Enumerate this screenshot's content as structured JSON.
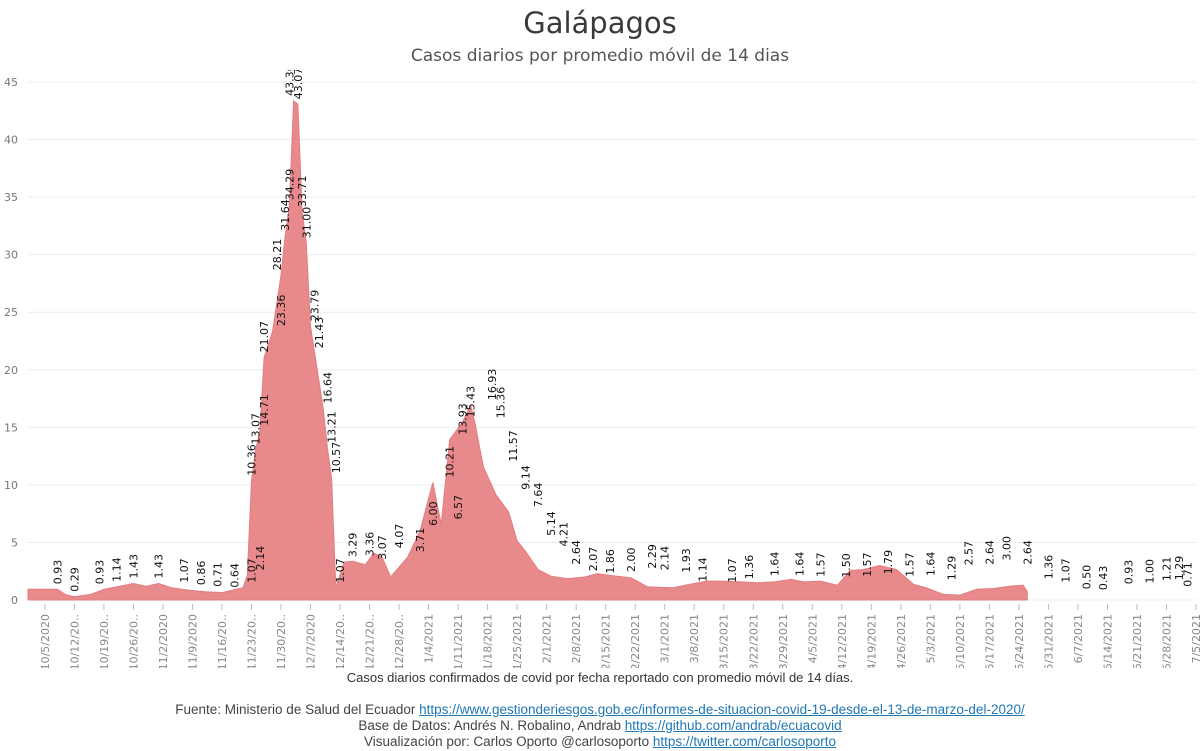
{
  "chart_data": {
    "type": "area",
    "title": "Galápagos",
    "subtitle": "Casos diarios por promedio móvil de 14 dias",
    "xlabel": "Casos diarios confirmados de covid por fecha reportado con promedio móvil de 14 días.",
    "ylim": [
      0,
      45
    ],
    "y_ticks": [
      0,
      5,
      10,
      15,
      20,
      25,
      30,
      35,
      40,
      45
    ],
    "x_ticks": [
      "10/5/2020",
      "10/12/20..",
      "10/19/20..",
      "10/26/20..",
      "11/2/2020",
      "11/9/2020",
      "11/16/20..",
      "11/23/20..",
      "11/30/20..",
      "12/7/2020",
      "12/14/20..",
      "12/21/20..",
      "12/28/20..",
      "1/4/2021",
      "1/11/2021",
      "1/18/2021",
      "1/25/2021",
      "2/1/2021",
      "2/8/2021",
      "2/15/2021",
      "2/22/2021",
      "3/1/2021",
      "3/8/2021",
      "3/15/2021",
      "3/22/2021",
      "3/29/2021",
      "4/5/2021",
      "4/12/2021",
      "4/19/2021",
      "4/26/2021",
      "5/3/2021",
      "5/10/2021",
      "5/17/2021",
      "5/24/2021",
      "5/31/2021",
      "6/7/2021",
      "6/14/2021",
      "6/21/2021",
      "6/28/2021",
      "7/5/2021"
    ],
    "x_start": "2020-10-01",
    "x_end": "2021-07-05",
    "grid": "horizontal",
    "color": "#e8898b",
    "series": [
      {
        "points": [
          [
            "2020-10-01",
            0.93
          ],
          [
            "2020-10-08",
            0.93
          ],
          [
            "2020-10-10",
            0.45
          ],
          [
            "2020-10-12",
            0.29
          ],
          [
            "2020-10-16",
            0.5
          ],
          [
            "2020-10-19",
            0.93
          ],
          [
            "2020-10-22",
            1.14
          ],
          [
            "2020-10-26",
            1.43
          ],
          [
            "2020-10-29",
            1.2
          ],
          [
            "2020-11-01",
            1.43
          ],
          [
            "2020-11-04",
            1.07
          ],
          [
            "2020-11-08",
            0.86
          ],
          [
            "2020-11-12",
            0.71
          ],
          [
            "2020-11-16",
            0.64
          ],
          [
            "2020-11-19",
            0.9
          ],
          [
            "2020-11-21",
            1.07
          ],
          [
            "2020-11-22",
            2.14
          ],
          [
            "2020-11-23",
            10.36
          ],
          [
            "2020-11-24",
            13.07
          ],
          [
            "2020-11-25",
            14.71
          ],
          [
            "2020-11-26",
            21.07
          ],
          [
            "2020-11-28",
            23.36
          ],
          [
            "2020-11-30",
            28.21
          ],
          [
            "2020-12-01",
            31.64
          ],
          [
            "2020-12-02",
            34.29
          ],
          [
            "2020-12-03",
            43.36
          ],
          [
            "2020-12-04",
            43.07
          ],
          [
            "2020-12-05",
            33.71
          ],
          [
            "2020-12-06",
            31.0
          ],
          [
            "2020-12-07",
            23.79
          ],
          [
            "2020-12-08",
            21.43
          ],
          [
            "2020-12-10",
            16.64
          ],
          [
            "2020-12-11",
            13.21
          ],
          [
            "2020-12-12",
            10.57
          ],
          [
            "2020-12-13",
            1.07
          ],
          [
            "2020-12-15",
            3.29
          ],
          [
            "2020-12-17",
            3.36
          ],
          [
            "2020-12-20",
            3.07
          ],
          [
            "2020-12-22",
            4.07
          ],
          [
            "2020-12-24",
            3.71
          ],
          [
            "2020-12-26",
            2.0
          ],
          [
            "2020-12-30",
            3.71
          ],
          [
            "2021-01-02",
            6.0
          ],
          [
            "2021-01-05",
            10.21
          ],
          [
            "2021-01-07",
            6.57
          ],
          [
            "2021-01-09",
            13.93
          ],
          [
            "2021-01-12",
            15.43
          ],
          [
            "2021-01-14",
            16.93
          ],
          [
            "2021-01-15",
            15.36
          ],
          [
            "2021-01-17",
            11.57
          ],
          [
            "2021-01-20",
            9.14
          ],
          [
            "2021-01-23",
            7.64
          ],
          [
            "2021-01-25",
            5.14
          ],
          [
            "2021-01-27",
            4.21
          ],
          [
            "2021-01-30",
            2.64
          ],
          [
            "2021-02-02",
            2.07
          ],
          [
            "2021-02-06",
            1.86
          ],
          [
            "2021-02-10",
            2.0
          ],
          [
            "2021-02-13",
            2.29
          ],
          [
            "2021-02-16",
            2.14
          ],
          [
            "2021-02-21",
            1.93
          ],
          [
            "2021-02-25",
            1.14
          ],
          [
            "2021-03-03",
            1.07
          ],
          [
            "2021-03-07",
            1.36
          ],
          [
            "2021-03-11",
            1.64
          ],
          [
            "2021-03-15",
            1.64
          ],
          [
            "2021-03-19",
            1.57
          ],
          [
            "2021-03-23",
            1.5
          ],
          [
            "2021-03-27",
            1.57
          ],
          [
            "2021-03-31",
            1.79
          ],
          [
            "2021-04-03",
            1.57
          ],
          [
            "2021-04-07",
            1.64
          ],
          [
            "2021-04-11",
            1.29
          ],
          [
            "2021-04-14",
            2.57
          ],
          [
            "2021-04-17",
            2.64
          ],
          [
            "2021-04-21",
            3.0
          ],
          [
            "2021-04-25",
            2.64
          ],
          [
            "2021-04-29",
            1.36
          ],
          [
            "2021-05-02",
            1.07
          ],
          [
            "2021-05-06",
            0.5
          ],
          [
            "2021-05-10",
            0.43
          ],
          [
            "2021-05-14",
            0.93
          ],
          [
            "2021-05-18",
            1.0
          ],
          [
            "2021-05-22",
            1.21
          ],
          [
            "2021-05-25",
            1.29
          ],
          [
            "2021-05-26",
            0.71
          ]
        ]
      }
    ],
    "data_labels": [
      [
        "2020-10-08",
        0.93,
        "0.93"
      ],
      [
        "2020-10-12",
        0.29,
        "0.29"
      ],
      [
        "2020-10-18",
        0.93,
        "0.93"
      ],
      [
        "2020-10-22",
        1.14,
        "1.14"
      ],
      [
        "2020-10-26",
        1.43,
        "1.43"
      ],
      [
        "2020-11-01",
        1.43,
        "1.43"
      ],
      [
        "2020-11-07",
        1.07,
        "1.07"
      ],
      [
        "2020-11-11",
        0.86,
        "0.86"
      ],
      [
        "2020-11-15",
        0.71,
        "0.71"
      ],
      [
        "2020-11-19",
        0.64,
        "0.64"
      ],
      [
        "2020-11-23",
        1.07,
        "1.07"
      ],
      [
        "2020-11-25",
        2.14,
        "2.14"
      ],
      [
        "2020-11-23",
        10.36,
        "10.36"
      ],
      [
        "2020-11-24",
        13.07,
        "13.07"
      ],
      [
        "2020-11-26",
        14.71,
        "14.71"
      ],
      [
        "2020-11-26",
        21.07,
        "21.07"
      ],
      [
        "2020-11-30",
        23.36,
        "23.36"
      ],
      [
        "2020-11-29",
        28.21,
        "28.21"
      ],
      [
        "2020-12-01",
        31.64,
        "31.64"
      ],
      [
        "2020-12-02",
        34.29,
        "34.29"
      ],
      [
        "2020-12-02",
        43.36,
        "43.36"
      ],
      [
        "2020-12-04",
        43.07,
        "43.07"
      ],
      [
        "2020-12-05",
        33.71,
        "33.71"
      ],
      [
        "2020-12-06",
        31.0,
        "31.00"
      ],
      [
        "2020-12-08",
        23.79,
        "23.79"
      ],
      [
        "2020-12-09",
        21.43,
        "21.43"
      ],
      [
        "2020-12-11",
        16.64,
        "16.64"
      ],
      [
        "2020-12-12",
        13.21,
        "13.21"
      ],
      [
        "2020-12-13",
        10.57,
        "10.57"
      ],
      [
        "2020-12-14",
        1.07,
        "1.07"
      ],
      [
        "2020-12-17",
        3.29,
        "3.29"
      ],
      [
        "2020-12-21",
        3.36,
        "3.36"
      ],
      [
        "2020-12-24",
        3.07,
        "3.07"
      ],
      [
        "2020-12-28",
        4.07,
        "4.07"
      ],
      [
        "2021-01-02",
        3.71,
        "3.71"
      ],
      [
        "2021-01-05",
        6.0,
        "6.00"
      ],
      [
        "2021-01-09",
        10.21,
        "10.21"
      ],
      [
        "2021-01-11",
        6.57,
        "6.57"
      ],
      [
        "2021-01-12",
        13.93,
        "13.93"
      ],
      [
        "2021-01-14",
        15.43,
        "15.43"
      ],
      [
        "2021-01-19",
        16.93,
        "16.93"
      ],
      [
        "2021-01-21",
        15.36,
        "15.36"
      ],
      [
        "2021-01-24",
        11.57,
        "11.57"
      ],
      [
        "2021-01-27",
        9.14,
        "9.14"
      ],
      [
        "2021-01-30",
        7.64,
        "7.64"
      ],
      [
        "2021-02-02",
        5.14,
        "5.14"
      ],
      [
        "2021-02-05",
        4.21,
        "4.21"
      ],
      [
        "2021-02-08",
        2.64,
        "2.64"
      ],
      [
        "2021-02-12",
        2.07,
        "2.07"
      ],
      [
        "2021-02-16",
        1.86,
        "1.86"
      ],
      [
        "2021-02-21",
        2.0,
        "2.00"
      ],
      [
        "2021-02-26",
        2.29,
        "2.29"
      ],
      [
        "2021-03-01",
        2.14,
        "2.14"
      ],
      [
        "2021-03-06",
        1.93,
        "1.93"
      ],
      [
        "2021-03-10",
        1.14,
        "1.14"
      ],
      [
        "2021-03-17",
        1.07,
        "1.07"
      ],
      [
        "2021-03-21",
        1.36,
        "1.36"
      ],
      [
        "2021-03-27",
        1.64,
        "1.64"
      ],
      [
        "2021-04-02",
        1.64,
        "1.64"
      ],
      [
        "2021-04-07",
        1.57,
        "1.57"
      ],
      [
        "2021-04-13",
        1.5,
        "1.50"
      ],
      [
        "2021-04-18",
        1.57,
        "1.57"
      ],
      [
        "2021-04-23",
        1.79,
        "1.79"
      ],
      [
        "2021-04-28",
        1.57,
        "1.57"
      ],
      [
        "2021-05-03",
        1.64,
        "1.64"
      ],
      [
        "2021-05-08",
        1.29,
        "1.29"
      ],
      [
        "2021-05-12",
        2.57,
        "2.57"
      ],
      [
        "2021-05-17",
        2.64,
        "2.64"
      ],
      [
        "2021-05-21",
        3.0,
        "3.00"
      ],
      [
        "2021-05-26",
        2.64,
        "2.64"
      ],
      [
        "2021-05-31",
        1.36,
        "1.36"
      ],
      [
        "2021-06-04",
        1.07,
        "1.07"
      ],
      [
        "2021-06-09",
        0.5,
        "0.50"
      ],
      [
        "2021-06-13",
        0.43,
        "0.43"
      ],
      [
        "2021-06-19",
        0.93,
        "0.93"
      ],
      [
        "2021-06-24",
        1.0,
        "1.00"
      ],
      [
        "2021-06-28",
        1.21,
        "1.21"
      ],
      [
        "2021-07-01",
        1.29,
        "1.29"
      ],
      [
        "2021-07-03",
        0.71,
        "0.71"
      ]
    ]
  },
  "footer": {
    "source_label": "Fuente: Ministerio de Salud del Ecuador",
    "source_url": "https://www.gestionderiesgos.gob.ec/informes-de-situacion-covid-19-desde-el-13-de-marzo-del-2020/",
    "data_label": "Base de Datos: Andrés N. Robalino, Andrab",
    "data_url": "https://github.com/andrab/ecuacovid",
    "viz_label": "Visualización por: Carlos Oporto @carlosoporto",
    "viz_url": "https://twitter.com/carlosoporto"
  }
}
